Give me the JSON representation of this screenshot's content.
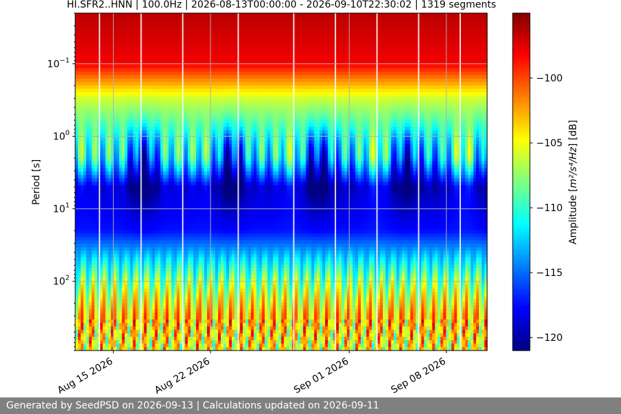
{
  "chart_data": {
    "type": "heatmap",
    "title": "HI.SFR2..HNN | 100.0Hz | 2026-08-13T00:00:00 - 2026-09-10T22:30:02 | 1319 segments",
    "xlabel": "",
    "ylabel": "Period [s]",
    "x_range": [
      "2026-08-12T06:00",
      "2026-09-10T22:30"
    ],
    "x_ticks": [
      {
        "date": "2026-08-15",
        "label": "Aug 15 2026"
      },
      {
        "date": "2026-08-22",
        "label": "Aug 22 2026"
      },
      {
        "date": "2026-09-01",
        "label": "Sep 01 2026"
      },
      {
        "date": "2026-09-08",
        "label": "Sep 08 2026"
      }
    ],
    "y_scale": "log",
    "y_inverted": true,
    "y_range": [
      0.02,
      900
    ],
    "y_ticks": [
      {
        "value": 0.1,
        "base": "10",
        "exp": "−1"
      },
      {
        "value": 1,
        "base": "10",
        "exp": "0"
      },
      {
        "value": 10,
        "base": "10",
        "exp": "1"
      },
      {
        "value": 100,
        "base": "10",
        "exp": "2"
      }
    ],
    "grid": true,
    "colormap": "jet",
    "colorbar": {
      "label_prefix": "Amplitude [",
      "label_math": "m²/s⁴/Hz",
      "label_suffix": "] [dB]",
      "range": [
        -121,
        -95
      ],
      "ticks": [
        {
          "value": -100,
          "label": "−100"
        },
        {
          "value": -105,
          "label": "−105"
        },
        {
          "value": -110,
          "label": "−110"
        },
        {
          "value": -115,
          "label": "−115"
        },
        {
          "value": -120,
          "label": "−120"
        }
      ]
    },
    "data_gaps": [
      "2026-08-14",
      "2026-08-17",
      "2026-08-20",
      "2026-08-24",
      "2026-08-28",
      "2026-08-31",
      "2026-09-03",
      "2026-09-06",
      "2026-09-09"
    ],
    "profile": {
      "period_s": [
        0.02,
        0.1,
        0.3,
        1,
        2,
        5,
        20,
        60,
        150,
        300,
        900
      ],
      "amplitude_db": [
        -96.5,
        -98,
        -106,
        -111,
        -113,
        -119.5,
        -117.5,
        -111,
        -106,
        -103,
        -105
      ]
    }
  },
  "footer": {
    "text": "Generated by SeedPSD on 2026-09-13 | Calculations updated on 2026-09-11"
  }
}
